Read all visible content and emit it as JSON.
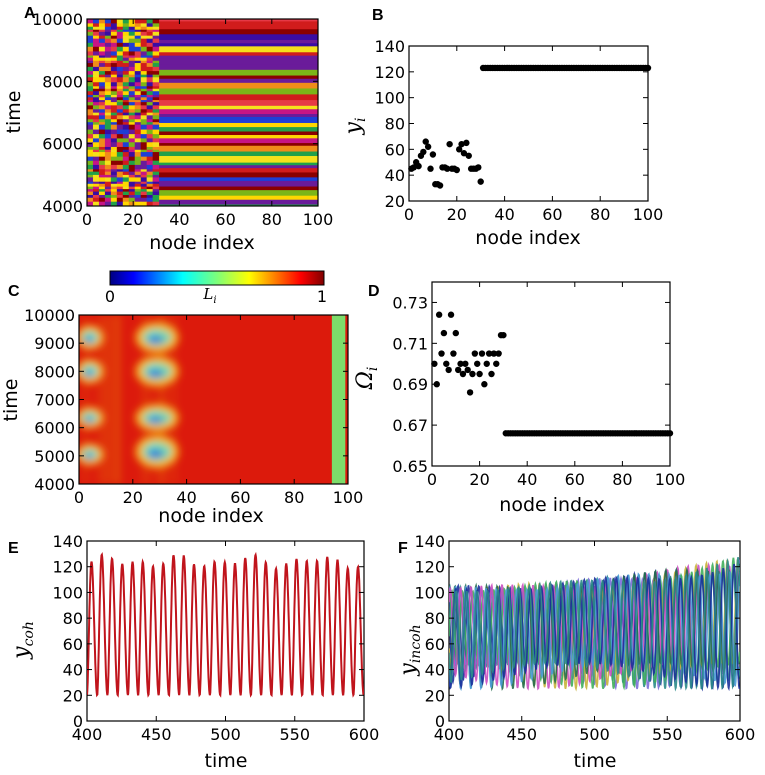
{
  "colors": {
    "dot": "#000000",
    "trace_coh": "#c0141c",
    "jet_red": "#dc1a0c",
    "green_band": "#7ddc6a",
    "incoh_palette": [
      "#1b2f9a",
      "#2a8a8a",
      "#7b6bd8",
      "#3fae5a",
      "#c8b33a",
      "#cc4fc0",
      "#246b4a",
      "#4a9bd6"
    ]
  },
  "panels": {
    "A": {
      "label": "A"
    },
    "B": {
      "label": "B"
    },
    "C": {
      "label": "C"
    },
    "D": {
      "label": "D"
    },
    "E": {
      "label": "E"
    },
    "F": {
      "label": "F"
    }
  },
  "colorbar": {
    "min_label": "0",
    "max_label": "1",
    "label": "L",
    "label_sub": "i"
  },
  "chart_data": [
    {
      "id": "A",
      "type": "heatmap",
      "xlabel": "node index",
      "ylabel": "time",
      "xlim": [
        0,
        100
      ],
      "ylim": [
        4000,
        10000
      ],
      "xticks": [
        "0",
        "20",
        "40",
        "60",
        "80",
        "100"
      ],
      "yticks": [
        "4000",
        "6000",
        "8000",
        "10000"
      ],
      "incoherent_nodes": [
        0,
        31
      ],
      "coherent_nodes": [
        31,
        100
      ]
    },
    {
      "id": "B",
      "type": "scatter",
      "xlabel": "node index",
      "ylabel": "y",
      "ylabel_sub": "i",
      "xlim": [
        0,
        100
      ],
      "ylim": [
        20,
        140
      ],
      "xticks": [
        "0",
        "20",
        "40",
        "60",
        "80",
        "100"
      ],
      "yticks": [
        "20",
        "40",
        "60",
        "80",
        "100",
        "120",
        "140"
      ],
      "x": [
        1,
        2,
        3,
        4,
        5,
        6,
        7,
        8,
        9,
        10,
        11,
        12,
        13,
        14,
        15,
        16,
        17,
        18,
        19,
        20,
        21,
        22,
        23,
        24,
        25,
        26,
        27,
        28,
        29,
        30
      ],
      "y": [
        45,
        46,
        50,
        47,
        55,
        58,
        66,
        62,
        45,
        56,
        33,
        33,
        32,
        46,
        46,
        45,
        64,
        45,
        45,
        44,
        60,
        64,
        57,
        65,
        55,
        45,
        45,
        45,
        46,
        35
      ],
      "coherent_value": 123,
      "coherent_x_range": [
        31,
        100
      ]
    },
    {
      "id": "C",
      "type": "heatmap",
      "xlabel": "node index",
      "ylabel": "time",
      "xlim": [
        0,
        100
      ],
      "ylim": [
        4000,
        10000
      ],
      "xticks": [
        "0",
        "20",
        "40",
        "60",
        "80",
        "100"
      ],
      "yticks": [
        "4000",
        "5000",
        "6000",
        "7000",
        "8000",
        "9000",
        "10000"
      ],
      "colorbar_range": [
        0,
        1
      ],
      "low_coherence_regions": [
        {
          "x": [
            0,
            8
          ],
          "t": [
            4800,
            5300
          ]
        },
        {
          "x": [
            0,
            8
          ],
          "t": [
            6100,
            6600
          ]
        },
        {
          "x": [
            0,
            8
          ],
          "t": [
            7700,
            8300
          ]
        },
        {
          "x": [
            0,
            8
          ],
          "t": [
            8900,
            9500
          ]
        },
        {
          "x": [
            22,
            36
          ],
          "t": [
            4700,
            5600
          ]
        },
        {
          "x": [
            22,
            36
          ],
          "t": [
            6000,
            6700
          ]
        },
        {
          "x": [
            22,
            36
          ],
          "t": [
            7600,
            8400
          ]
        },
        {
          "x": [
            22,
            36
          ],
          "t": [
            8800,
            9600
          ]
        }
      ],
      "green_band_x": [
        94,
        99
      ]
    },
    {
      "id": "D",
      "type": "scatter",
      "xlabel": "node index",
      "ylabel": "Ω",
      "ylabel_sub": "i",
      "xlim": [
        0,
        100
      ],
      "ylim": [
        0.65,
        0.74
      ],
      "xticks": [
        "0",
        "20",
        "40",
        "60",
        "80",
        "100"
      ],
      "yticks": [
        "0.65",
        "0.67",
        "0.69",
        "0.71",
        "0.73"
      ],
      "x": [
        1,
        2,
        3,
        4,
        5,
        6,
        7,
        8,
        9,
        10,
        11,
        12,
        13,
        14,
        15,
        16,
        17,
        18,
        19,
        20,
        21,
        22,
        23,
        24,
        25,
        26,
        27,
        28,
        29,
        30
      ],
      "y": [
        0.7,
        0.69,
        0.724,
        0.705,
        0.715,
        0.7,
        0.697,
        0.724,
        0.705,
        0.715,
        0.697,
        0.7,
        0.695,
        0.7,
        0.697,
        0.686,
        0.695,
        0.705,
        0.7,
        0.695,
        0.705,
        0.69,
        0.7,
        0.705,
        0.695,
        0.705,
        0.7,
        0.705,
        0.714,
        0.714
      ],
      "coherent_value": 0.666,
      "coherent_x_range": [
        31,
        100
      ]
    },
    {
      "id": "E",
      "type": "line",
      "xlabel": "time",
      "ylabel": "y",
      "ylabel_sub": "coh",
      "xlim": [
        400,
        600
      ],
      "ylim": [
        0,
        140
      ],
      "xticks": [
        "400",
        "450",
        "500",
        "550",
        "600"
      ],
      "yticks": [
        "0",
        "20",
        "40",
        "60",
        "80",
        "100",
        "120",
        "140"
      ],
      "oscillation": {
        "period": 7.4,
        "min": 20,
        "max_range": [
          118,
          130
        ]
      }
    },
    {
      "id": "F",
      "type": "line",
      "xlabel": "time",
      "ylabel": "y",
      "ylabel_sub": "incoh",
      "xlim": [
        400,
        600
      ],
      "ylim": [
        0,
        140
      ],
      "xticks": [
        "400",
        "450",
        "500",
        "550",
        "600"
      ],
      "yticks": [
        "0",
        "20",
        "40",
        "60",
        "80",
        "100",
        "120",
        "140"
      ],
      "oscillation": {
        "period": 7.2,
        "min_range": [
          25,
          45
        ],
        "max_range": [
          90,
          128
        ],
        "series_count": 10
      }
    }
  ]
}
